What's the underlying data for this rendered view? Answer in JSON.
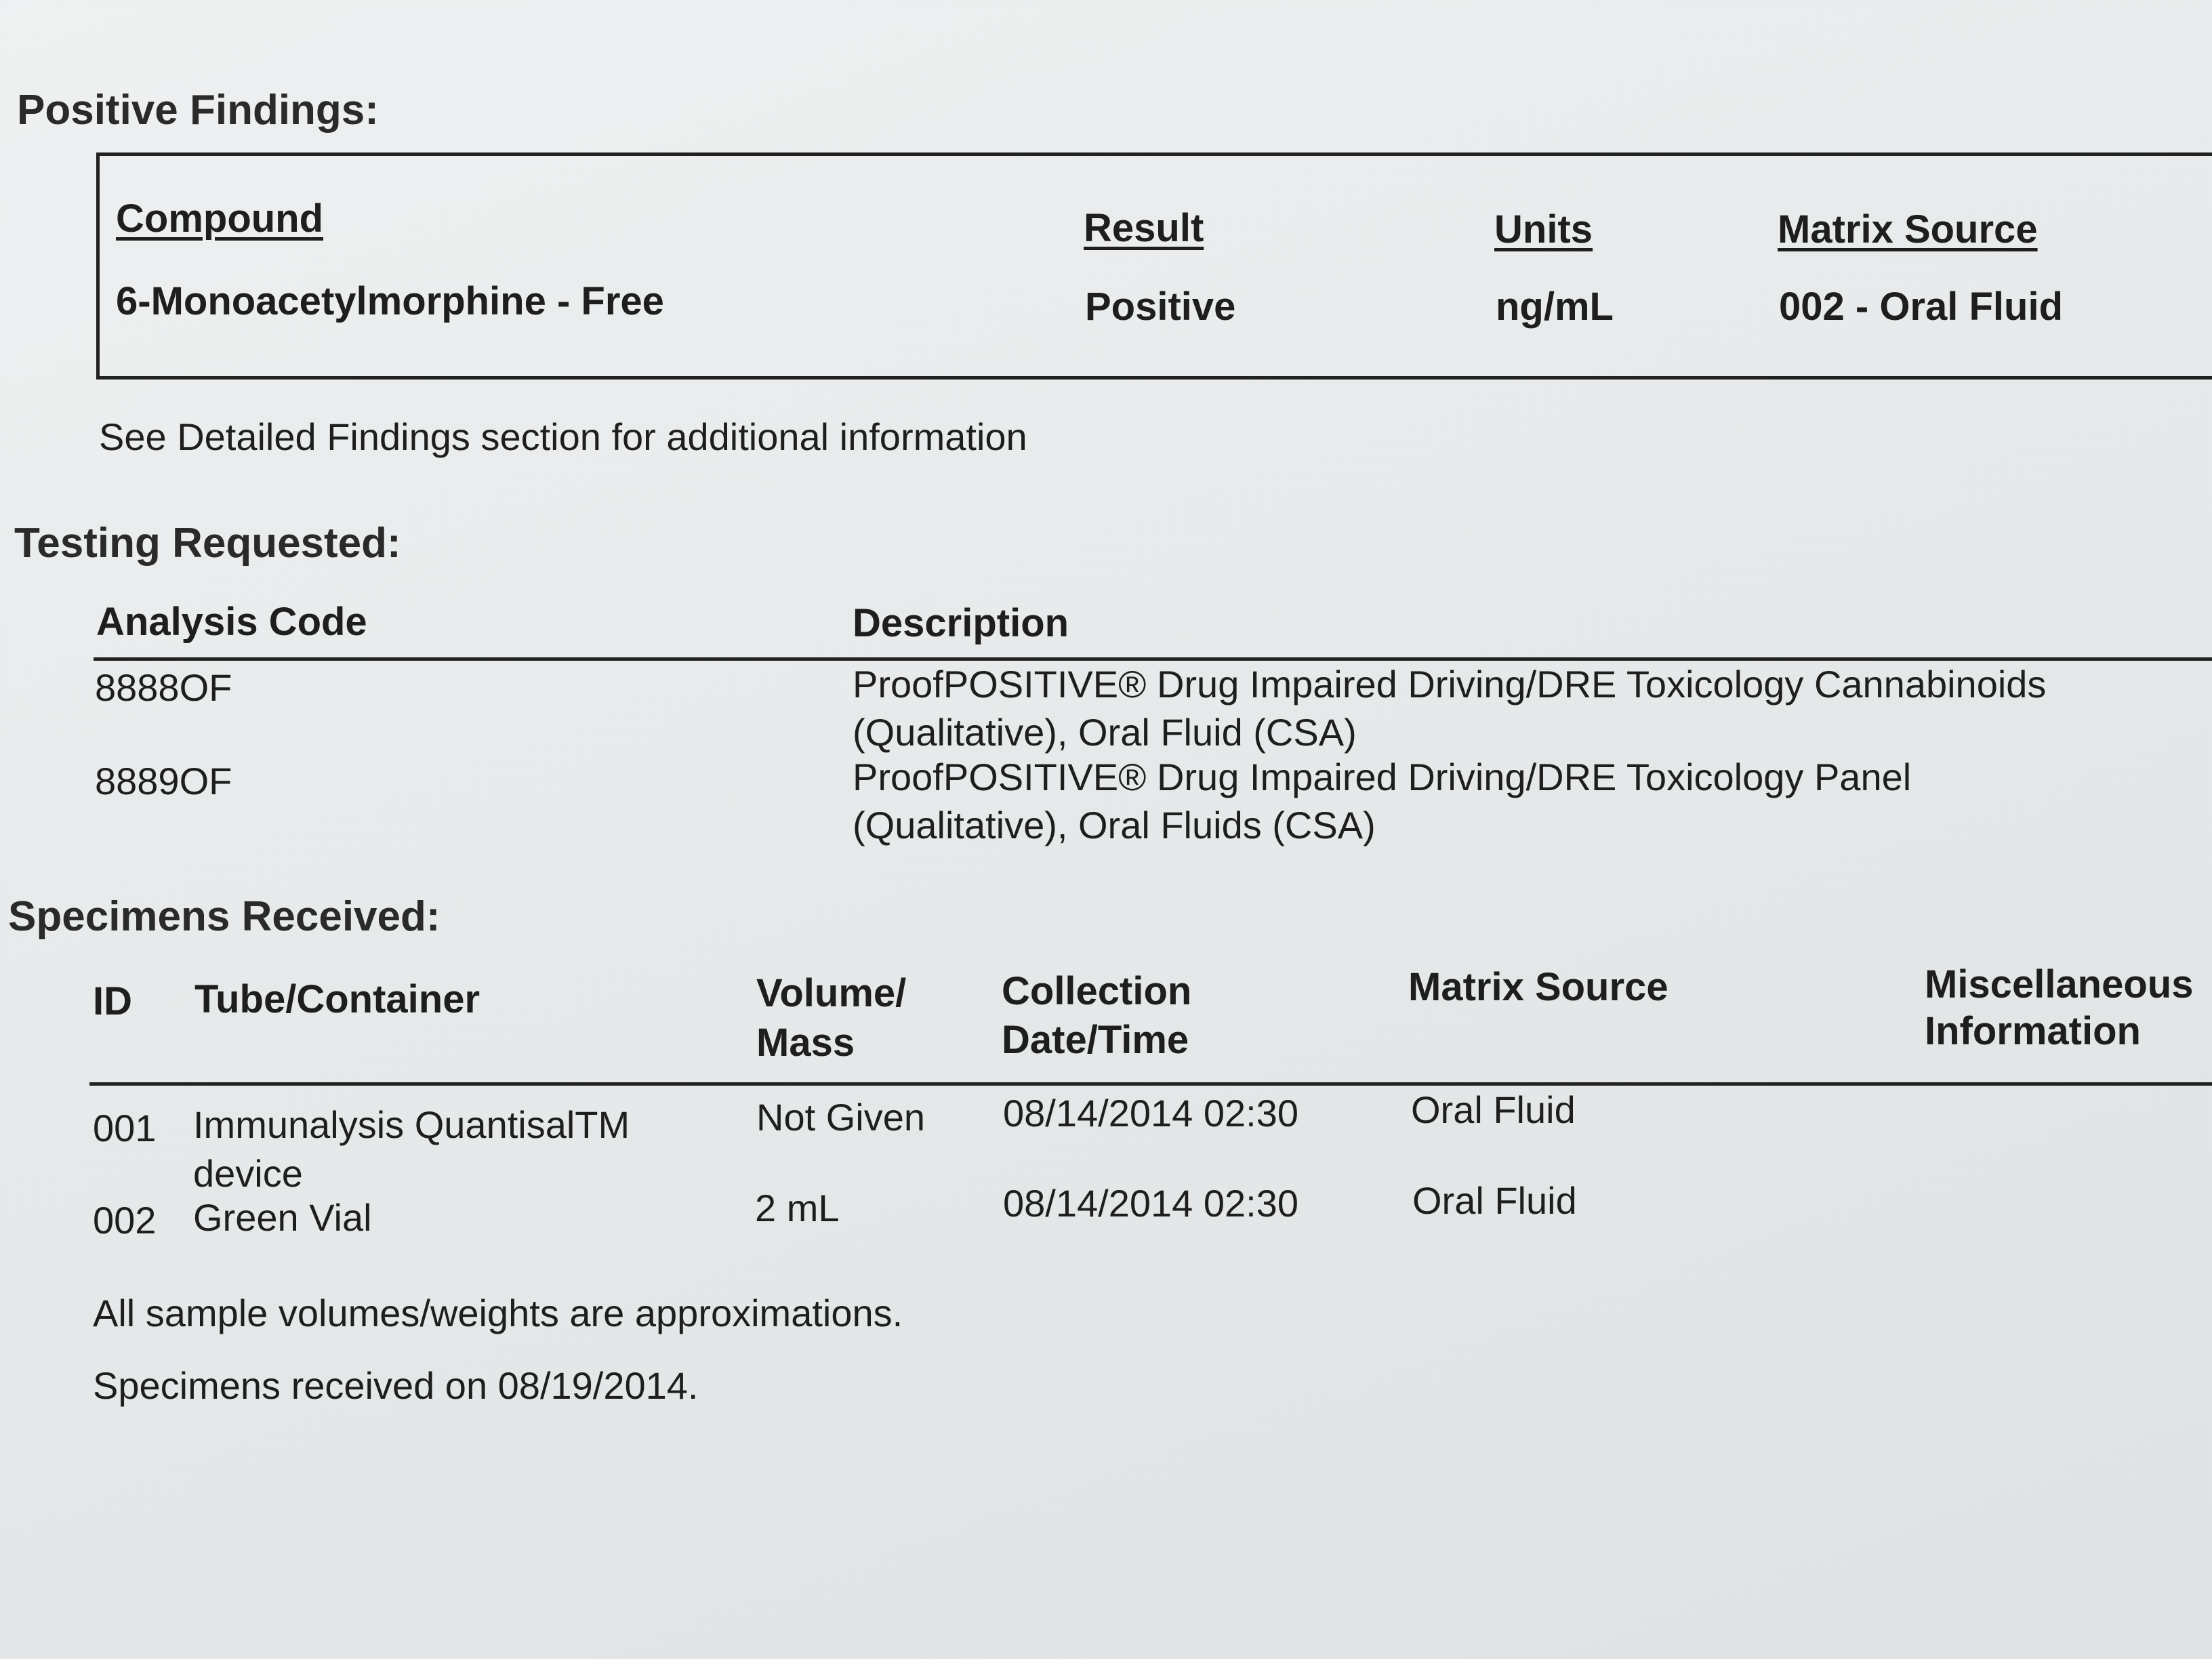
{
  "positive_findings": {
    "title": "Positive Findings:",
    "headers": {
      "compound": "Compound",
      "result": "Result",
      "units": "Units",
      "matrix_source": "Matrix Source"
    },
    "rows": [
      {
        "compound": "6-Monoacetylmorphine - Free",
        "result": "Positive",
        "units": "ng/mL",
        "matrix_source": "002 - Oral Fluid"
      }
    ],
    "note": "See Detailed Findings section for additional information"
  },
  "testing_requested": {
    "title": "Testing Requested:",
    "headers": {
      "code": "Analysis Code",
      "description": "Description"
    },
    "rows": [
      {
        "code": "8888OF",
        "description_line1": "ProofPOSITIVE® Drug Impaired Driving/DRE Toxicology Cannabinoids",
        "description_line2": "(Qualitative), Oral Fluid (CSA)"
      },
      {
        "code": "8889OF",
        "description_line1": "ProofPOSITIVE® Drug Impaired Driving/DRE Toxicology Panel",
        "description_line2": "(Qualitative), Oral Fluids (CSA)"
      }
    ]
  },
  "specimens_received": {
    "title": "Specimens Received:",
    "headers": {
      "id": "ID",
      "tube": "Tube/Container",
      "volume_1": "Volume/",
      "volume_2": "Mass",
      "collection_1": "Collection",
      "collection_2": "Date/Time",
      "matrix": "Matrix Source",
      "misc_1": "Miscellaneous",
      "misc_2": "Information"
    },
    "rows": [
      {
        "id": "001",
        "tube_line1": "Immunalysis QuantisalTM",
        "tube_line2": "device",
        "volume": "Not Given",
        "collection": "08/14/2014 02:30",
        "matrix": "Oral Fluid"
      },
      {
        "id": "002",
        "tube_line1": "Green Vial",
        "volume": "2 mL",
        "collection": "08/14/2014 02:30",
        "matrix": "Oral Fluid"
      }
    ],
    "note1": "All sample volumes/weights are approximations.",
    "note2": "Specimens received on 08/19/2014."
  }
}
